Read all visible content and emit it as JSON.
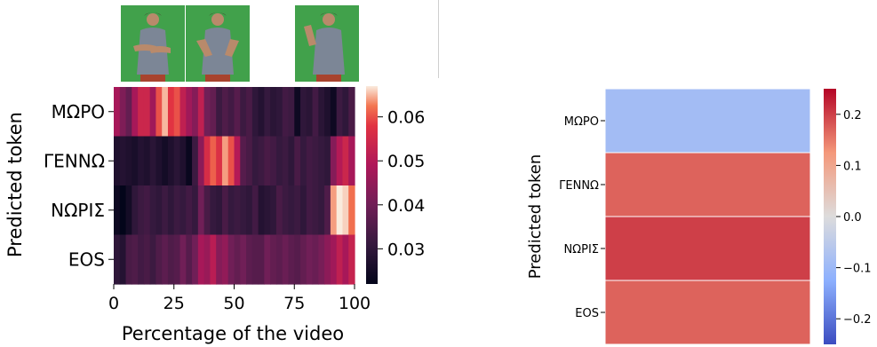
{
  "chart_data": [
    {
      "type": "heatmap",
      "title": "",
      "xlabel": "Percentage of the video",
      "ylabel": "Predicted token",
      "rows": [
        "ΜΩΡΟ",
        "ΓΕΝΝΩ",
        "ΝΩΡΙΣ",
        "EOS"
      ],
      "xlim": [
        0,
        100
      ],
      "xticks": [
        0,
        25,
        50,
        75,
        100
      ],
      "colorbar": {
        "colormap": "rocket",
        "ticks": [
          0.03,
          0.04,
          0.05,
          0.06
        ],
        "range": [
          0.022,
          0.067
        ]
      },
      "columns": 40,
      "values": [
        [
          0.048,
          0.042,
          0.038,
          0.048,
          0.054,
          0.054,
          0.047,
          0.06,
          0.065,
          0.058,
          0.06,
          0.052,
          0.047,
          0.043,
          0.052,
          0.04,
          0.038,
          0.032,
          0.035,
          0.033,
          0.036,
          0.032,
          0.034,
          0.03,
          0.028,
          0.031,
          0.029,
          0.03,
          0.033,
          0.032,
          0.024,
          0.03,
          0.029,
          0.033,
          0.029,
          0.027,
          0.024,
          0.032,
          0.03,
          0.034
        ],
        [
          0.027,
          0.028,
          0.027,
          0.026,
          0.028,
          0.027,
          0.029,
          0.027,
          0.025,
          0.027,
          0.029,
          0.027,
          0.023,
          0.032,
          0.044,
          0.056,
          0.061,
          0.057,
          0.064,
          0.06,
          0.05,
          0.036,
          0.034,
          0.031,
          0.032,
          0.034,
          0.033,
          0.031,
          0.032,
          0.03,
          0.034,
          0.031,
          0.033,
          0.032,
          0.031,
          0.03,
          0.043,
          0.05,
          0.054,
          0.048
        ],
        [
          0.024,
          0.022,
          0.025,
          0.03,
          0.032,
          0.033,
          0.031,
          0.03,
          0.032,
          0.03,
          0.032,
          0.031,
          0.033,
          0.031,
          0.04,
          0.034,
          0.031,
          0.03,
          0.034,
          0.031,
          0.032,
          0.031,
          0.03,
          0.033,
          0.028,
          0.029,
          0.03,
          0.034,
          0.032,
          0.031,
          0.032,
          0.03,
          0.033,
          0.032,
          0.031,
          0.035,
          0.064,
          0.067,
          0.066,
          0.062
        ],
        [
          0.03,
          0.028,
          0.034,
          0.035,
          0.033,
          0.034,
          0.032,
          0.035,
          0.037,
          0.035,
          0.036,
          0.04,
          0.036,
          0.04,
          0.048,
          0.046,
          0.051,
          0.043,
          0.045,
          0.04,
          0.038,
          0.04,
          0.037,
          0.036,
          0.036,
          0.04,
          0.038,
          0.037,
          0.039,
          0.037,
          0.036,
          0.038,
          0.04,
          0.039,
          0.041,
          0.044,
          0.047,
          0.052,
          0.048,
          0.053
        ]
      ]
    },
    {
      "type": "heatmap",
      "title": "",
      "xlabel": "",
      "ylabel": "Predicted token",
      "rows": [
        "ΜΩΡΟ",
        "ΓΕΝΝΩ",
        "ΝΩΡΙΣ",
        "EOS"
      ],
      "values": [
        -0.09,
        0.17,
        0.2,
        0.17
      ],
      "colorbar": {
        "colormap": "coolwarm",
        "ticks": [
          -0.2,
          -0.1,
          0.0,
          0.1,
          0.2
        ],
        "range": [
          -0.25,
          0.25
        ]
      }
    }
  ],
  "video_frames": [
    "signer-frame-1",
    "signer-frame-2",
    "signer-frame-3"
  ]
}
